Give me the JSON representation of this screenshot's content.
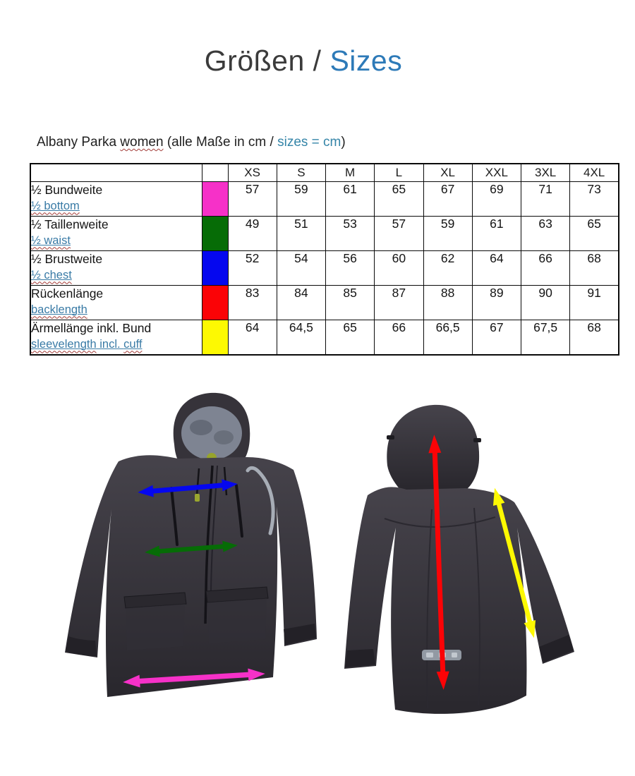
{
  "title": {
    "german": "Größen / ",
    "english": "Sizes"
  },
  "subtitle": {
    "prefix": "Albany Parka ",
    "misspelled_word": "women",
    "middle": " (alle Maße in cm / ",
    "highlight": "sizes = cm",
    "suffix": ")"
  },
  "table": {
    "size_headers": [
      "XS",
      "S",
      "M",
      "L",
      "XL",
      "XXL",
      "3XL",
      "4XL"
    ],
    "rows": [
      {
        "label_de": "½ Bundweite",
        "en_parts": [
          {
            "text": "½ bottom",
            "squiggle": true
          }
        ],
        "color": "#f631c8",
        "color_name": "magenta",
        "values": [
          "57",
          "59",
          "61",
          "65",
          "67",
          "69",
          "71",
          "73"
        ]
      },
      {
        "label_de": "½ Taillenweite",
        "en_parts": [
          {
            "text": "½ waist",
            "squiggle": true
          }
        ],
        "color": "#066c06",
        "color_name": "green",
        "values": [
          "49",
          "51",
          "53",
          "57",
          "59",
          "61",
          "63",
          "65"
        ]
      },
      {
        "label_de": "½ Brustweite",
        "en_parts": [
          {
            "text": "½ chest",
            "squiggle": true
          }
        ],
        "color": "#0507ef",
        "color_name": "blue",
        "values": [
          "52",
          "54",
          "56",
          "60",
          "62",
          "64",
          "66",
          "68"
        ]
      },
      {
        "label_de": "Rückenlänge",
        "en_parts": [
          {
            "text": "backlength",
            "squiggle": true
          }
        ],
        "color": "#fb0306",
        "color_name": "red",
        "values": [
          "83",
          "84",
          "85",
          "87",
          "88",
          "89",
          "90",
          "91"
        ]
      },
      {
        "label_de": "Ärmellänge inkl. Bund",
        "en_parts": [
          {
            "text": "sleevelength",
            "squiggle": true
          },
          {
            "text": " incl. ",
            "squiggle": false
          },
          {
            "text": "cuff",
            "squiggle": true
          }
        ],
        "color": "#fdf902",
        "color_name": "yellow",
        "values": [
          "64",
          "64,5",
          "65",
          "66",
          "66,5",
          "67",
          "67,5",
          "68"
        ]
      }
    ]
  }
}
